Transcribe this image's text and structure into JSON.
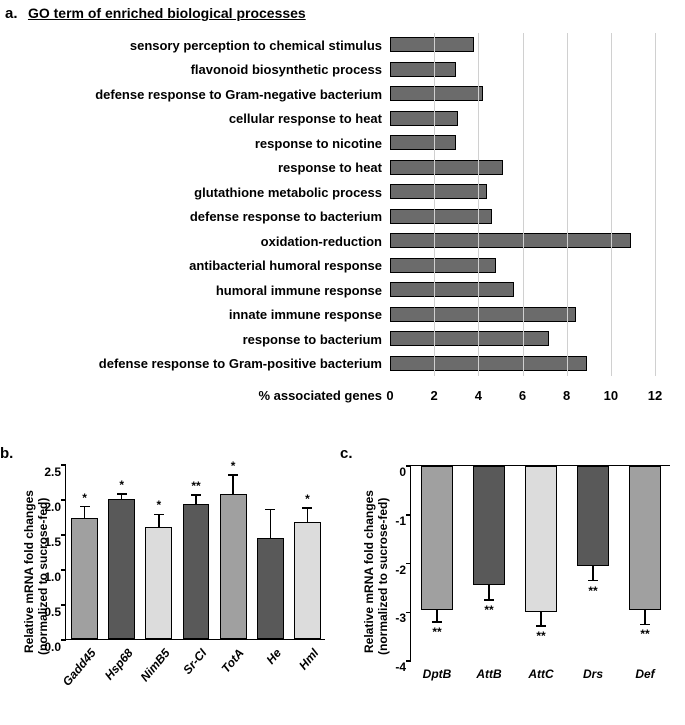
{
  "panel_a": {
    "label": "a.",
    "title": "GO term of enriched biological processes",
    "x_axis_title": "% associated genes",
    "xlim": [
      0,
      12
    ],
    "xtick_step": 2,
    "bar_color": "#6b6b6b",
    "categories": [
      "sensory perception to chemical stimulus",
      "flavonoid biosynthetic process",
      "defense response to Gram-negative bacterium",
      "cellular response to heat",
      "response to nicotine",
      "response to heat",
      "glutathione metabolic process",
      "defense response to bacterium",
      "oxidation-reduction",
      "antibacterial humoral response",
      "humoral immune response",
      "innate immune response",
      "response to bacterium",
      "defense response to Gram-positive bacterium"
    ],
    "values": [
      3.8,
      3.0,
      4.2,
      3.1,
      3.0,
      5.1,
      4.4,
      4.6,
      10.9,
      4.8,
      5.6,
      8.4,
      7.2,
      8.9
    ]
  },
  "panel_b": {
    "label": "b.",
    "y_axis_title_line1": "Relative mRNA fold changes",
    "y_axis_title_line2": "(normalized to sucrose-fed)",
    "ylim": [
      0.0,
      2.5
    ],
    "ytick_step": 0.5,
    "categories": [
      "Gadd45",
      "Hsp68",
      "NimB5",
      "Sr-CI",
      "TotA",
      "He",
      "Hml"
    ],
    "values": [
      1.73,
      2.0,
      1.6,
      1.93,
      2.07,
      1.45,
      1.67
    ],
    "errors": [
      0.16,
      0.07,
      0.18,
      0.13,
      0.27,
      0.4,
      0.2
    ],
    "significance": [
      "*",
      "*",
      "*",
      "**",
      "*",
      "",
      "*"
    ],
    "bar_colors": [
      "#a0a0a0",
      "#595959",
      "#dcdcdc",
      "#595959",
      "#a0a0a0",
      "#595959",
      "#dcdcdc"
    ]
  },
  "panel_c": {
    "label": "c.",
    "y_axis_title_line1": "Relative mRNA fold changes",
    "y_axis_title_line2": "(normalized to sucrose-fed)",
    "ylim": [
      -4,
      0
    ],
    "ytick_step": 1,
    "categories": [
      "DptB",
      "AttB",
      "AttC",
      "Drs",
      "Def"
    ],
    "values": [
      -2.95,
      -2.45,
      -3.0,
      -2.05,
      -2.95
    ],
    "errors": [
      0.25,
      0.3,
      0.28,
      0.3,
      0.3
    ],
    "significance": [
      "**",
      "**",
      "**",
      "**",
      "**"
    ],
    "bar_colors": [
      "#a0a0a0",
      "#595959",
      "#dcdcdc",
      "#595959",
      "#a0a0a0"
    ]
  }
}
